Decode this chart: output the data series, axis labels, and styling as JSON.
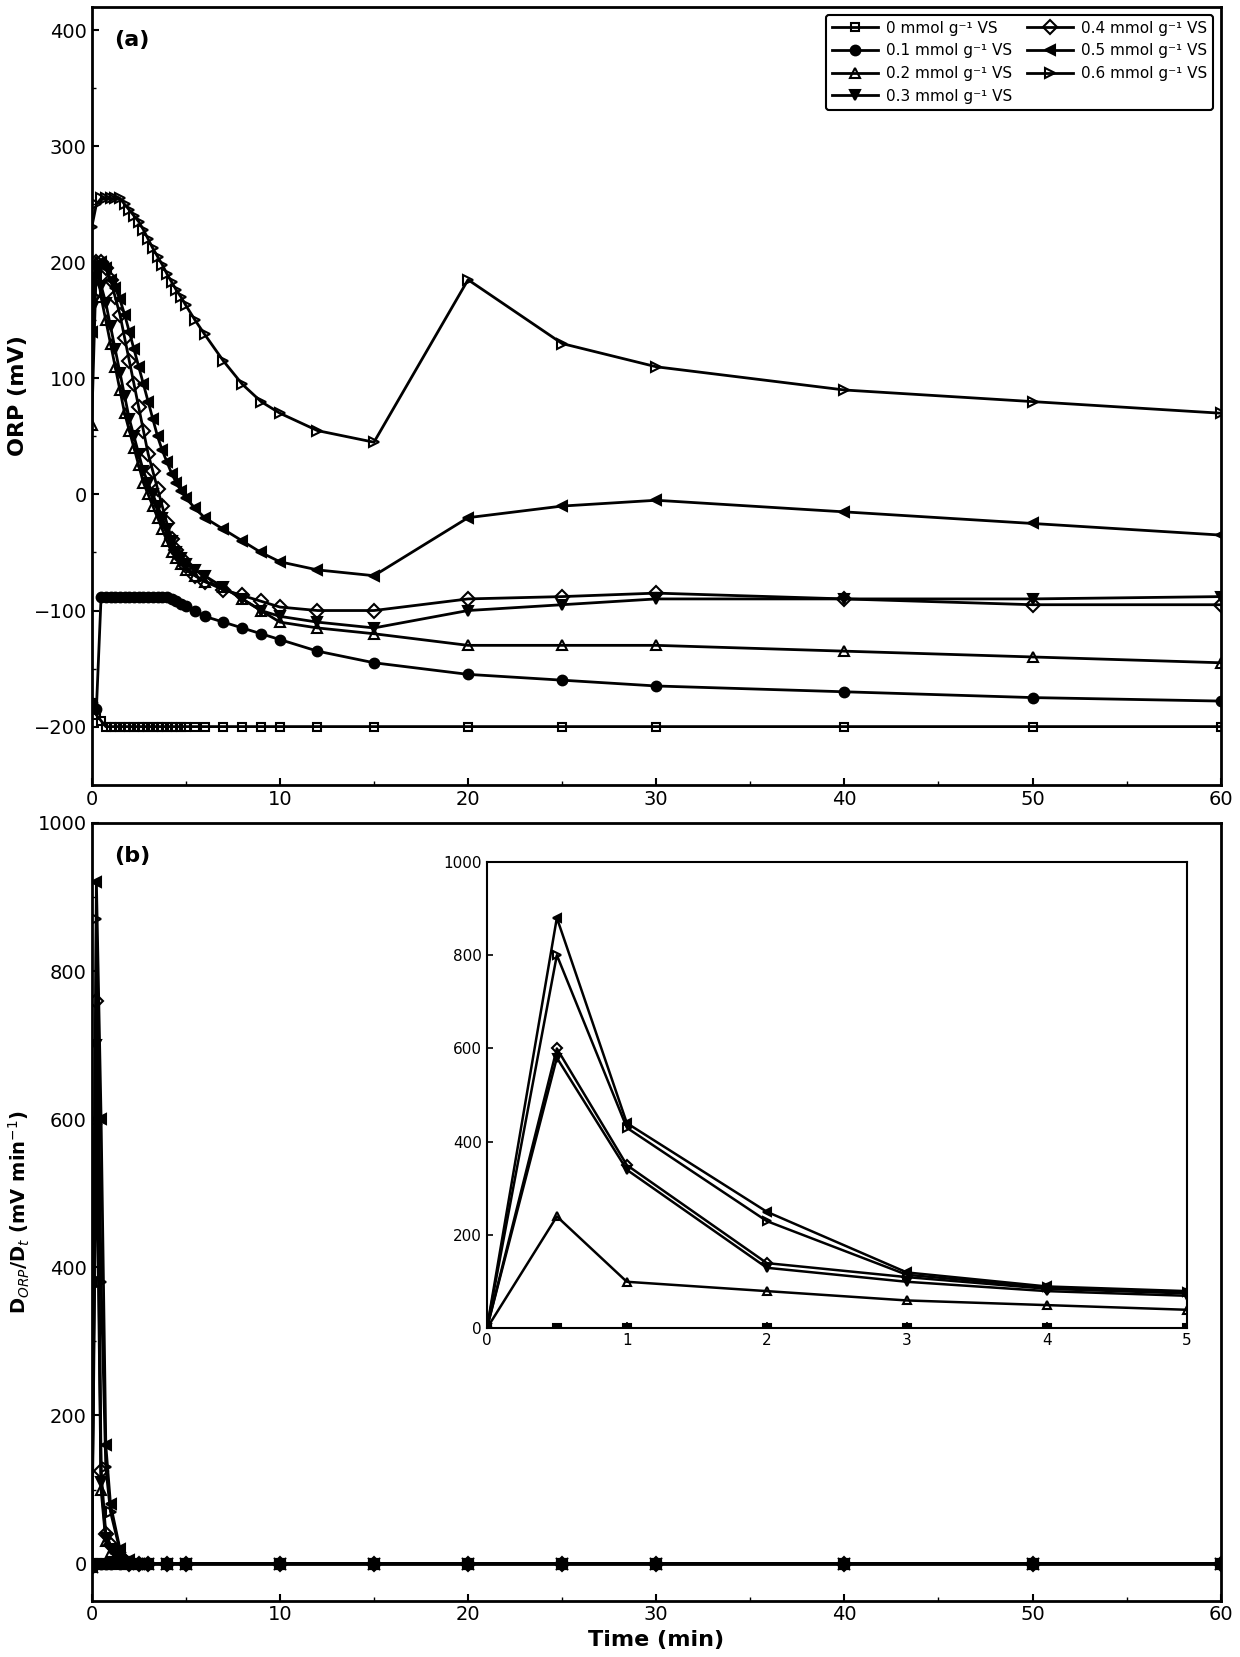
{
  "title_a": "(a)",
  "title_b": "(b)",
  "ylabel_a": "ORP (mV)",
  "ylabel_b": "D$_{ORP}$/D$_t$ (mV min$^{-1}$)",
  "xlabel": "Time (min)",
  "legend_labels": [
    "0 mmol g⁻¹ VS",
    "0.1 mmol g⁻¹ VS",
    "0.2 mmol g⁻¹ VS",
    "0.3 mmol g⁻¹ VS",
    "0.4 mmol g⁻¹ VS",
    "0.5 mmol g⁻¹ VS",
    "0.6 mmol g⁻¹ VS"
  ],
  "orp_data": {
    "t_dense": [
      0,
      0.25,
      0.5,
      0.75,
      1.0,
      1.25,
      1.5,
      1.75,
      2.0,
      2.25,
      2.5,
      2.75,
      3.0,
      3.25,
      3.5,
      3.75,
      4.0,
      4.25,
      4.5,
      4.75,
      5.0,
      5.5,
      6.0,
      7.0,
      8.0,
      9.0,
      10.0,
      12.0,
      15.0,
      20.0,
      25.0,
      30.0,
      40.0,
      50.0,
      60.0
    ],
    "dose0": [
      -180,
      -190,
      -195,
      -200,
      -200,
      -200,
      -200,
      -200,
      -200,
      -200,
      -200,
      -200,
      -200,
      -200,
      -200,
      -200,
      -200,
      -200,
      -200,
      -200,
      -200,
      -200,
      -200,
      -200,
      -200,
      -200,
      -200,
      -200,
      -200,
      -200,
      -200,
      -200,
      -200,
      -200,
      -200
    ],
    "dose01": [
      -180,
      -185,
      -88,
      -88,
      -88,
      -88,
      -88,
      -88,
      -88,
      -88,
      -88,
      -88,
      -88,
      -88,
      -88,
      -88,
      -88,
      -90,
      -92,
      -94,
      -96,
      -100,
      -105,
      -110,
      -115,
      -120,
      -125,
      -135,
      -145,
      -155,
      -160,
      -165,
      -170,
      -175,
      -178
    ],
    "dose02": [
      60,
      200,
      170,
      150,
      130,
      110,
      90,
      70,
      55,
      40,
      25,
      10,
      0,
      -10,
      -20,
      -30,
      -40,
      -50,
      -55,
      -60,
      -65,
      -70,
      -75,
      -80,
      -90,
      -100,
      -110,
      -115,
      -120,
      -130,
      -130,
      -130,
      -135,
      -140,
      -145
    ],
    "dose03": [
      160,
      195,
      180,
      165,
      145,
      125,
      105,
      85,
      65,
      50,
      35,
      20,
      10,
      0,
      -10,
      -20,
      -30,
      -40,
      -50,
      -55,
      -60,
      -65,
      -70,
      -80,
      -90,
      -100,
      -105,
      -110,
      -115,
      -100,
      -95,
      -90,
      -90,
      -90,
      -88
    ],
    "dose04": [
      170,
      200,
      200,
      195,
      185,
      170,
      155,
      135,
      115,
      95,
      75,
      55,
      35,
      20,
      5,
      -10,
      -25,
      -38,
      -48,
      -55,
      -62,
      -70,
      -75,
      -82,
      -87,
      -92,
      -97,
      -100,
      -100,
      -90,
      -88,
      -85,
      -90,
      -95,
      -95
    ],
    "dose05": [
      140,
      190,
      200,
      195,
      185,
      178,
      168,
      155,
      140,
      125,
      110,
      95,
      80,
      65,
      50,
      38,
      28,
      18,
      10,
      3,
      -3,
      -12,
      -20,
      -30,
      -40,
      -50,
      -58,
      -65,
      -70,
      -20,
      -10,
      -5,
      -15,
      -25,
      -35
    ],
    "dose06": [
      230,
      250,
      255,
      255,
      255,
      255,
      255,
      250,
      245,
      240,
      235,
      228,
      220,
      212,
      205,
      198,
      190,
      183,
      176,
      170,
      163,
      150,
      138,
      115,
      95,
      80,
      70,
      55,
      45,
      185,
      130,
      110,
      90,
      80,
      70
    ]
  },
  "dorpt_data": {
    "t": [
      0,
      0.25,
      0.5,
      0.75,
      1.0,
      1.5,
      2.0,
      2.5,
      3.0,
      4.0,
      5.0,
      10.0,
      15.0,
      20.0,
      25.0,
      30.0,
      40.0,
      50.0,
      60.0
    ],
    "dose0": [
      0,
      0,
      0,
      0,
      0,
      0,
      0,
      0,
      0,
      0,
      0,
      0,
      0,
      0,
      0,
      0,
      0,
      0,
      0
    ],
    "dose01": [
      -5,
      0,
      0,
      0,
      0,
      0,
      0,
      0,
      0,
      0,
      0,
      0,
      0,
      0,
      0,
      0,
      0,
      0,
      0
    ],
    "dose02": [
      -5,
      600,
      100,
      30,
      15,
      5,
      0,
      0,
      0,
      0,
      0,
      0,
      0,
      0,
      0,
      0,
      0,
      0,
      0
    ],
    "dose03": [
      -5,
      700,
      110,
      35,
      20,
      8,
      0,
      0,
      0,
      0,
      0,
      0,
      0,
      0,
      0,
      0,
      0,
      0,
      0
    ],
    "dose04": [
      -5,
      760,
      125,
      40,
      25,
      10,
      0,
      0,
      0,
      0,
      0,
      0,
      0,
      0,
      0,
      0,
      0,
      0,
      0
    ],
    "dose05": [
      -5,
      920,
      600,
      160,
      80,
      20,
      5,
      0,
      0,
      0,
      0,
      0,
      0,
      0,
      0,
      0,
      0,
      0,
      0
    ],
    "dose06": [
      -5,
      870,
      380,
      130,
      70,
      18,
      5,
      0,
      0,
      0,
      0,
      0,
      0,
      0,
      0,
      0,
      0,
      0,
      0
    ]
  },
  "linewidth": 2.0,
  "markersize": 7,
  "figsize": [
    12.4,
    16.57
  ],
  "dpi": 100
}
